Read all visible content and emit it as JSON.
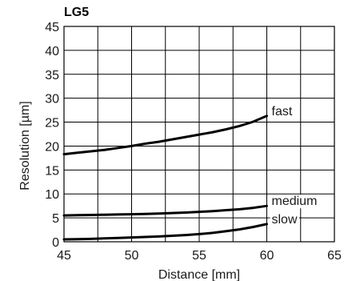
{
  "chart_data": {
    "type": "line",
    "title": "LG5",
    "xlabel": "Distance [mm]",
    "ylabel": "Resolution [µm]",
    "xlim": [
      45,
      65
    ],
    "ylim": [
      0,
      45
    ],
    "xticks": [
      45,
      50,
      55,
      60,
      65
    ],
    "yticks": [
      0,
      5,
      10,
      15,
      20,
      25,
      30,
      35,
      40,
      45
    ],
    "grid": true,
    "series": [
      {
        "name": "fast",
        "x": [
          45,
          46,
          47,
          48,
          49,
          50,
          51,
          52,
          53,
          54,
          55,
          56,
          57,
          58,
          59,
          60
        ],
        "y": [
          18.3,
          18.6,
          18.9,
          19.2,
          19.6,
          20.0,
          20.5,
          20.9,
          21.4,
          21.9,
          22.4,
          22.9,
          23.5,
          24.2,
          25.1,
          26.3
        ]
      },
      {
        "name": "medium",
        "x": [
          45,
          46,
          47,
          48,
          49,
          50,
          51,
          52,
          53,
          54,
          55,
          56,
          57,
          58,
          59,
          60
        ],
        "y": [
          5.5,
          5.55,
          5.6,
          5.65,
          5.7,
          5.75,
          5.8,
          5.9,
          6.0,
          6.1,
          6.25,
          6.4,
          6.6,
          6.8,
          7.1,
          7.5
        ]
      },
      {
        "name": "slow",
        "x": [
          45,
          46,
          47,
          48,
          49,
          50,
          51,
          52,
          53,
          54,
          55,
          56,
          57,
          58,
          59,
          60
        ],
        "y": [
          0.5,
          0.55,
          0.6,
          0.7,
          0.8,
          0.9,
          1.0,
          1.1,
          1.25,
          1.4,
          1.6,
          1.85,
          2.2,
          2.6,
          3.1,
          3.7
        ]
      }
    ]
  }
}
